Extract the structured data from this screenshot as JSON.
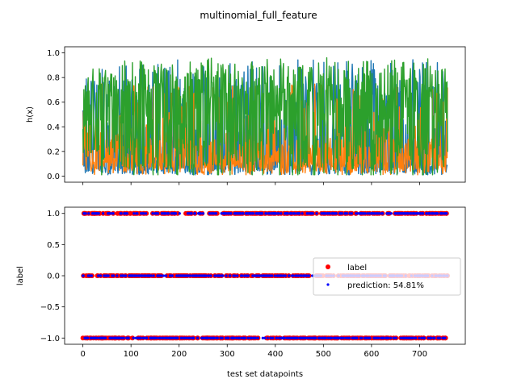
{
  "figure_title": "multinomial_full_feature",
  "colors": {
    "series_blue": "#1f77b4",
    "series_orange": "#ff7f0e",
    "series_green": "#2ca02c",
    "label_red": "#ff0000",
    "prediction_blue": "#0000ff"
  },
  "chart_data": [
    {
      "type": "line",
      "xlabel": "",
      "ylabel": "h(x)",
      "xlim": [
        -38,
        795
      ],
      "ylim": [
        -0.05,
        1.05
      ],
      "yticks": [
        0.0,
        0.2,
        0.4,
        0.6,
        0.8,
        1.0
      ],
      "ytick_labels": [
        "0.0",
        "0.2",
        "0.4",
        "0.6",
        "0.8",
        "1.0"
      ],
      "xticks": [
        0,
        100,
        200,
        300,
        400,
        500,
        600,
        700
      ],
      "x_count": 759,
      "series": [
        {
          "color": "#1f77b4",
          "typical_range": [
            0.0,
            0.95
          ],
          "sample_values": [
            0.06,
            0.38,
            0.02,
            0.71,
            0.15,
            0.88,
            0.04,
            0.55,
            0.22,
            0.93,
            0.09,
            0.47
          ]
        },
        {
          "color": "#ff7f0e",
          "typical_range": [
            0.0,
            0.8
          ],
          "sample_values": [
            0.12,
            0.05,
            0.34,
            0.08,
            0.61,
            0.03,
            0.27,
            0.14,
            0.72,
            0.06,
            0.19,
            0.41
          ]
        },
        {
          "color": "#2ca02c",
          "typical_range": [
            0.0,
            1.0
          ],
          "sample_values": [
            0.82,
            0.57,
            0.64,
            0.21,
            0.24,
            0.09,
            0.69,
            0.31,
            0.06,
            0.01,
            0.72,
            0.12
          ]
        }
      ],
      "grid": false
    },
    {
      "type": "scatter",
      "xlabel": "test set datapoints",
      "ylabel": "label",
      "xlim": [
        -38,
        795
      ],
      "ylim": [
        -1.1,
        1.1
      ],
      "yticks": [
        -1.0,
        -0.5,
        0.0,
        0.5,
        1.0
      ],
      "ytick_labels": [
        "−1.0",
        "−0.5",
        "0.0",
        "0.5",
        "1.0"
      ],
      "xticks": [
        0,
        100,
        200,
        300,
        400,
        500,
        600,
        700
      ],
      "xtick_labels": [
        "0",
        "100",
        "200",
        "300",
        "400",
        "500",
        "600",
        "700"
      ],
      "x_count": 759,
      "y_levels": [
        1.0,
        0.0,
        -1.0
      ],
      "series": [
        {
          "name": "label",
          "color": "#ff0000",
          "marker": "circle"
        },
        {
          "name": "prediction: 54.81%",
          "color": "#0000ff",
          "marker": "small-circle"
        }
      ],
      "legend_position": "center-right",
      "grid": false
    }
  ]
}
